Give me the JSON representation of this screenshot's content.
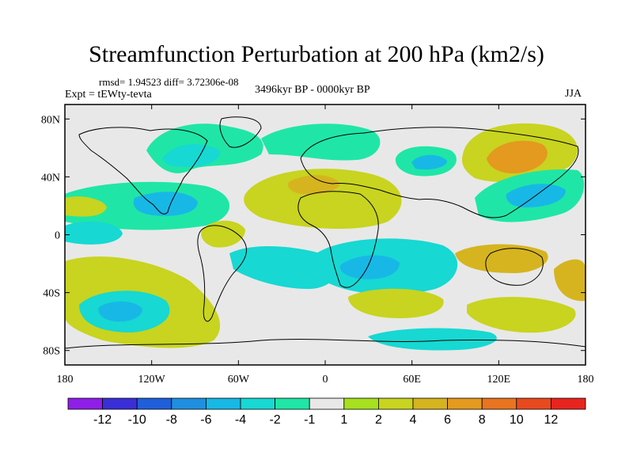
{
  "title": "Streamfunction Perturbation at 200 hPa (km2/s)",
  "stats_text": "rmsd= 1.94523 diff= 3.72306e-08",
  "experiment_text": "Expt = tEWty-tevta",
  "period_text": "3496kyr BP - 0000kyr BP",
  "season_text": "JJA",
  "map": {
    "projection": "cylindrical equidistant",
    "lon_range": [
      -180,
      180
    ],
    "lat_range": [
      -90,
      90
    ],
    "x_ticks": [
      {
        "lon": -180,
        "label": "180"
      },
      {
        "lon": -120,
        "label": "120W"
      },
      {
        "lon": -60,
        "label": "60W"
      },
      {
        "lon": 0,
        "label": "0"
      },
      {
        "lon": 60,
        "label": "60E"
      },
      {
        "lon": 120,
        "label": "120E"
      },
      {
        "lon": 180,
        "label": "180"
      }
    ],
    "y_ticks": [
      {
        "lat": 80,
        "label": "80N"
      },
      {
        "lat": 40,
        "label": "40N"
      },
      {
        "lat": 0,
        "label": "0"
      },
      {
        "lat": -40,
        "label": "40S"
      },
      {
        "lat": -80,
        "label": "80S"
      }
    ]
  },
  "colorbar": {
    "colors": [
      "#8f1fe6",
      "#3a2ed6",
      "#1f5fd9",
      "#1f8fe0",
      "#17b8e6",
      "#17d8d2",
      "#1fe6a6",
      "#e8e8e8",
      "#a6e01f",
      "#c8d41f",
      "#d6b41f",
      "#e39a1f",
      "#e8741f",
      "#e84a1f",
      "#e8241f"
    ],
    "labels": [
      "-12",
      "-10",
      "-8",
      "-6",
      "-4",
      "-2",
      "-1",
      "1",
      "2",
      "4",
      "6",
      "8",
      "10",
      "12"
    ]
  },
  "chart_data": {
    "type": "filled-contour map",
    "title": "Streamfunction Perturbation at 200 hPa (km2/s)",
    "units": "km2/s",
    "levels": [
      -12,
      -10,
      -8,
      -6,
      -4,
      -2,
      -1,
      1,
      2,
      4,
      6,
      8,
      10,
      12
    ],
    "features": [
      {
        "lon": 155,
        "lat": 62,
        "approx_value": 6
      },
      {
        "lon": -5,
        "lat": 35,
        "approx_value": 4
      },
      {
        "lon": 135,
        "lat": 27,
        "approx_value": -4
      },
      {
        "lon": -115,
        "lat": 25,
        "approx_value": -4
      },
      {
        "lon": 45,
        "lat": 43,
        "approx_value": -4
      },
      {
        "lon": 25,
        "lat": -30,
        "approx_value": -6
      },
      {
        "lon": -135,
        "lat": -60,
        "approx_value": -6
      },
      {
        "lon": -75,
        "lat": -45,
        "approx_value": 4
      },
      {
        "lon": 150,
        "lat": -43,
        "approx_value": 4
      }
    ]
  }
}
